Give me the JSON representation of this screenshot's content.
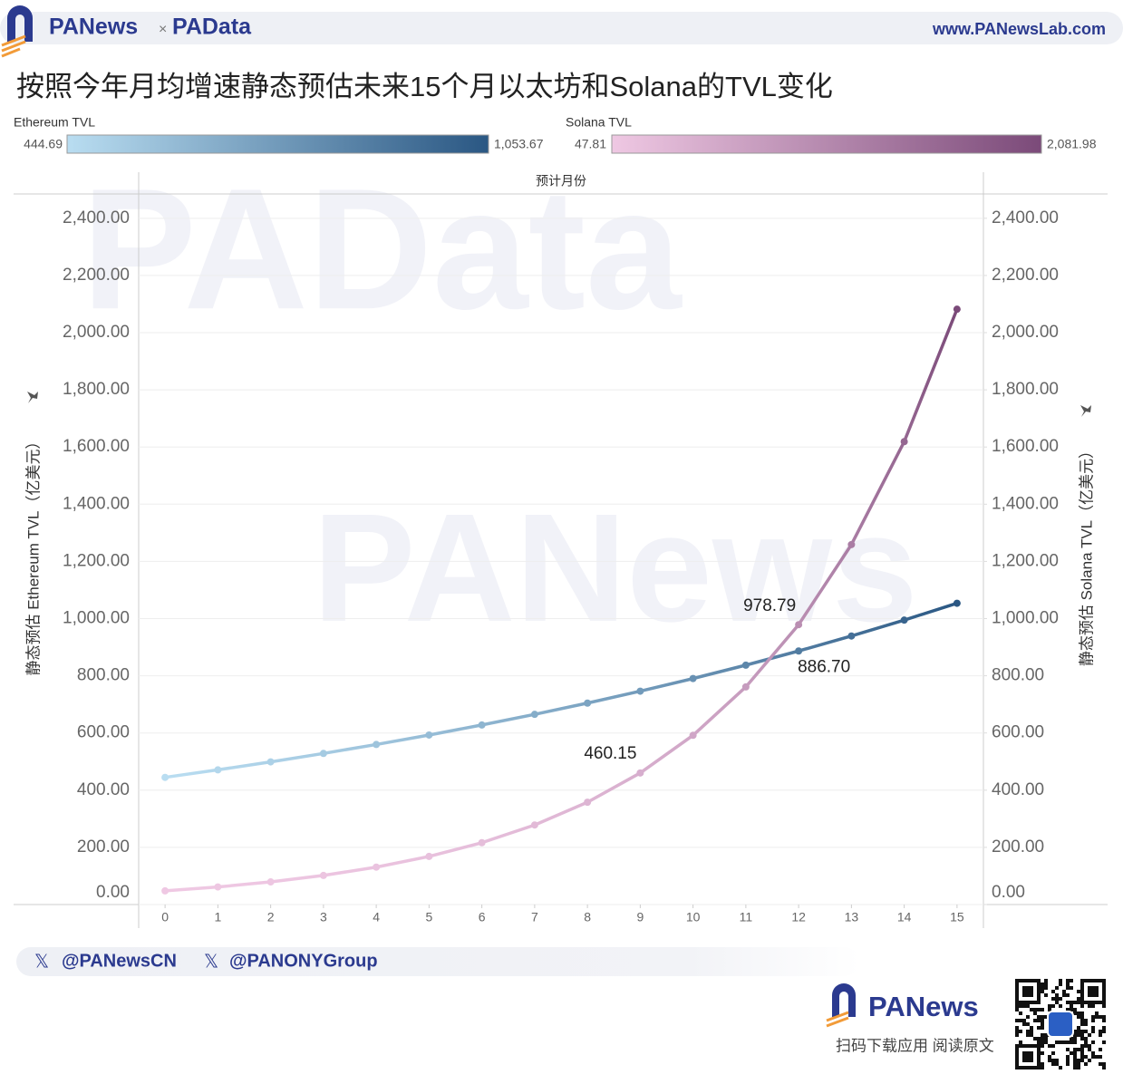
{
  "header": {
    "brand": "PANews",
    "separator": "×",
    "partner": "PAData",
    "url": "www.PANewsLab.com"
  },
  "watermarks": [
    "PAData",
    "PANews"
  ],
  "chart_data": {
    "type": "line",
    "title": "按照今年月均增速静态预估未来15个月以太坊和Solana的TVL变化",
    "x_label": "预计月份",
    "y_label": "静态预估 Ethereum TVL（亿美元）",
    "y2_label": "静态预估 Solana TVL（亿美元）",
    "x": [
      0,
      1,
      2,
      3,
      4,
      5,
      6,
      7,
      8,
      9,
      10,
      11,
      12,
      13,
      14,
      15
    ],
    "xlim": [
      -0.5,
      15.5
    ],
    "xticks": [
      0,
      1,
      2,
      3,
      4,
      5,
      6,
      7,
      8,
      9,
      10,
      11,
      12,
      13,
      14,
      15
    ],
    "ylim": [
      0,
      2485
    ],
    "yticks": [
      {
        "value": 0,
        "label": "0.00"
      },
      {
        "value": 200,
        "label": "200.00"
      },
      {
        "value": 400,
        "label": "400.00"
      },
      {
        "value": 600,
        "label": "600.00"
      },
      {
        "value": 800,
        "label": "800.00"
      },
      {
        "value": 1000,
        "label": "1,000.00"
      },
      {
        "value": 1200,
        "label": "1,200.00"
      },
      {
        "value": 1400,
        "label": "1,400.00"
      },
      {
        "value": 1600,
        "label": "1,600.00"
      },
      {
        "value": 1800,
        "label": "1,800.00"
      },
      {
        "value": 2000,
        "label": "2,000.00"
      },
      {
        "value": 2200,
        "label": "2,200.00"
      },
      {
        "value": 2400,
        "label": "2,400.00"
      }
    ],
    "y2lim": [
      0,
      2485
    ],
    "y2ticks": [
      {
        "value": 0,
        "label": "0.00"
      },
      {
        "value": 200,
        "label": "200.00"
      },
      {
        "value": 400,
        "label": "400.00"
      },
      {
        "value": 600,
        "label": "600.00"
      },
      {
        "value": 800,
        "label": "800.00"
      },
      {
        "value": 1000,
        "label": "1,000.00"
      },
      {
        "value": 1200,
        "label": "1,200.00"
      },
      {
        "value": 1400,
        "label": "1,400.00"
      },
      {
        "value": 1600,
        "label": "1,600.00"
      },
      {
        "value": 1800,
        "label": "1,800.00"
      },
      {
        "value": 2000,
        "label": "2,000.00"
      },
      {
        "value": 2200,
        "label": "2,200.00"
      },
      {
        "value": 2400,
        "label": "2,400.00"
      }
    ],
    "grid": true,
    "series": [
      {
        "name": "Ethereum TVL",
        "colors": [
          "#b9ddf1",
          "#2a5783"
        ],
        "legend": {
          "min": 444.69,
          "max": {
            "value": 1053.67,
            "label": "1,053.67"
          }
        },
        "values": [
          444.69,
          471.0,
          498.9,
          528.4,
          559.7,
          592.8,
          627.9,
          665.1,
          704.5,
          746.2,
          790.4,
          837.2,
          886.7,
          939.2,
          994.8,
          1053.67
        ],
        "value_labels": [
          null,
          null,
          null,
          null,
          null,
          null,
          null,
          null,
          null,
          null,
          null,
          null,
          "886.70",
          null,
          null,
          null
        ]
      },
      {
        "name": "Solana TVL",
        "axis": "y2",
        "colors": [
          "#efc8e3",
          "#7b4a79"
        ],
        "legend": {
          "min": 47.81,
          "max": {
            "value": 2081.98,
            "label": "2,081.98"
          }
        },
        "values": [
          47.81,
          61.5,
          79.1,
          101.7,
          130.8,
          168.2,
          216.3,
          278.2,
          357.8,
          460.15,
          591.8,
          761.1,
          978.79,
          1258.8,
          1618.9,
          2081.98
        ],
        "value_labels": [
          null,
          null,
          null,
          null,
          null,
          null,
          null,
          null,
          null,
          "460.15",
          null,
          null,
          "978.79",
          null,
          null,
          null
        ]
      }
    ]
  },
  "footer": {
    "social": [
      "@PANewsCN",
      "@PANONYGroup"
    ],
    "brand": "PANews",
    "slogan": "扫码下载应用  阅读原文"
  }
}
